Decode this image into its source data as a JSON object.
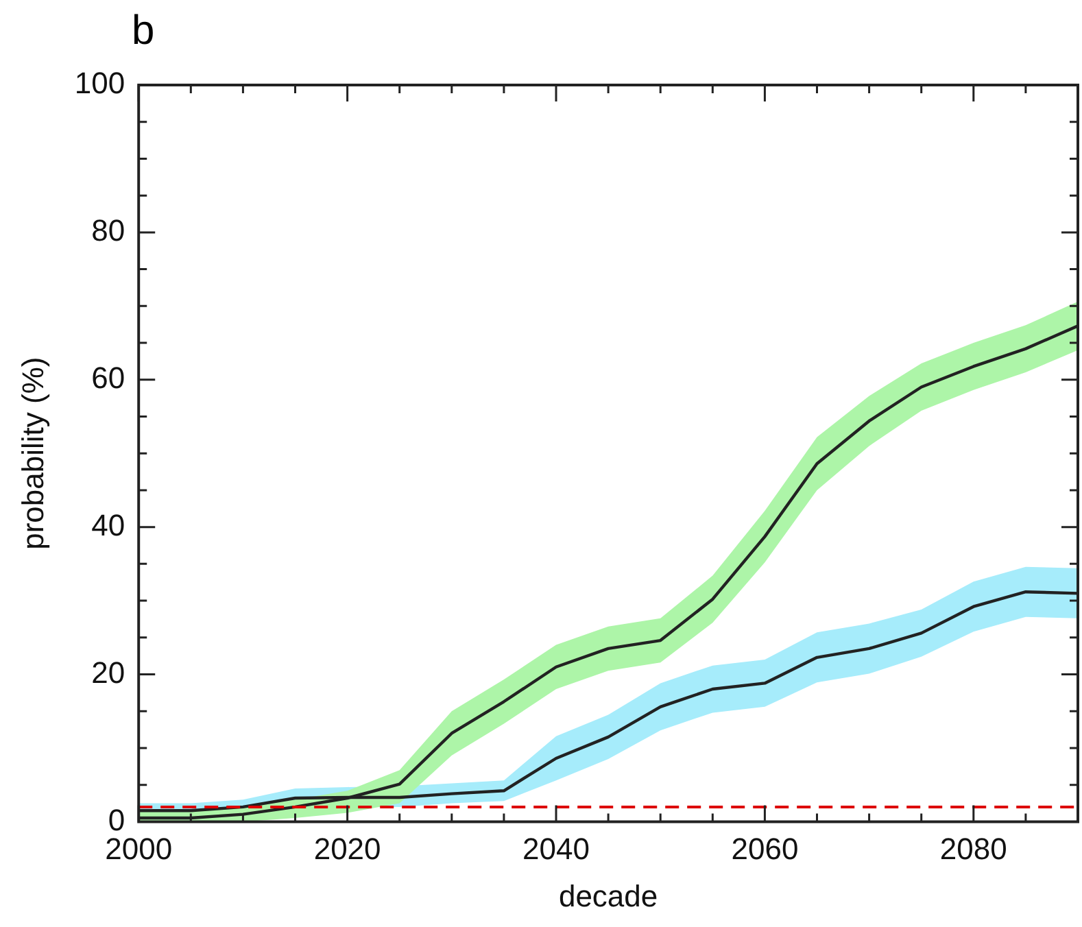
{
  "chart_data": {
    "type": "line",
    "title": "b",
    "xlabel": "decade",
    "ylabel": "probability (%)",
    "x": [
      2000,
      2005,
      2010,
      2015,
      2020,
      2025,
      2030,
      2035,
      2040,
      2045,
      2050,
      2055,
      2060,
      2065,
      2070,
      2075,
      2080,
      2085,
      2090
    ],
    "series": [
      {
        "color": "#222222",
        "values": [
          0.5,
          0.5,
          1,
          2,
          3.2,
          5.1,
          12,
          16.3,
          21,
          23.5,
          24.6,
          30.2,
          38.7,
          48.6,
          54.4,
          59,
          61.8,
          64.2,
          67.3
        ],
        "lower": [
          0,
          0,
          0,
          0.5,
          1.2,
          2.5,
          9,
          13.3,
          18,
          20.5,
          21.6,
          27,
          35.2,
          45,
          51,
          55.8,
          58.6,
          61,
          64
        ],
        "upper": [
          1.5,
          1.5,
          2,
          3,
          4.2,
          7,
          15,
          19.3,
          24,
          26.5,
          27.6,
          33.4,
          42.2,
          52.2,
          57.8,
          62.2,
          65,
          67.4,
          70.6
        ]
      },
      {
        "color": "#222222",
        "values": [
          1.5,
          1.5,
          2,
          3.2,
          3.3,
          3.3,
          3.8,
          4.2,
          8.6,
          11.5,
          15.6,
          18,
          18.8,
          22.3,
          23.5,
          25.6,
          29.2,
          31.2,
          31
        ],
        "lower": [
          0.5,
          0.5,
          1,
          2,
          2,
          2,
          2.5,
          2.8,
          5.6,
          8.5,
          12.4,
          14.8,
          15.6,
          18.9,
          20.1,
          22.4,
          25.8,
          27.8,
          27.6
        ],
        "upper": [
          2.5,
          2.5,
          3,
          4.5,
          4.7,
          4.8,
          5.2,
          5.6,
          11.6,
          14.5,
          18.8,
          21.2,
          22,
          25.7,
          26.9,
          28.8,
          32.6,
          34.6,
          34.4
        ]
      }
    ],
    "ref_lines": [
      {
        "axis": "y",
        "value": 2,
        "color": "#dd0000",
        "line_style": "dashed"
      }
    ],
    "xlim": [
      2000,
      2090
    ],
    "ylim": [
      0,
      100
    ],
    "xticks": [
      2000,
      {
        "value": 2005,
        "label": null
      },
      {
        "value": 2010,
        "label": null
      },
      {
        "value": 2015,
        "label": null
      },
      2020,
      {
        "value": 2025,
        "label": null
      },
      {
        "value": 2030,
        "label": null
      },
      {
        "value": 2035,
        "label": null
      },
      2040,
      {
        "value": 2045,
        "label": null
      },
      {
        "value": 2050,
        "label": null
      },
      {
        "value": 2055,
        "label": null
      },
      2060,
      {
        "value": 2065,
        "label": null
      },
      {
        "value": 2070,
        "label": null
      },
      {
        "value": 2075,
        "label": null
      },
      2080,
      {
        "value": 2085,
        "label": null
      }
    ],
    "yticks": [
      0,
      {
        "value": 5,
        "label": null
      },
      {
        "value": 10,
        "label": null
      },
      {
        "value": 15,
        "label": null
      },
      20,
      {
        "value": 25,
        "label": null
      },
      {
        "value": 30,
        "label": null
      },
      {
        "value": 35,
        "label": null
      },
      40,
      {
        "value": 45,
        "label": null
      },
      {
        "value": 50,
        "label": null
      },
      {
        "value": 55,
        "label": null
      },
      60,
      {
        "value": 65,
        "label": null
      },
      {
        "value": 70,
        "label": null
      },
      {
        "value": 75,
        "label": null
      },
      80,
      {
        "value": 85,
        "label": null
      },
      {
        "value": 90,
        "label": null
      },
      {
        "value": 95,
        "label": null
      },
      100
    ],
    "grid": false,
    "legend": false,
    "marker": "none",
    "line_style": "solid"
  }
}
